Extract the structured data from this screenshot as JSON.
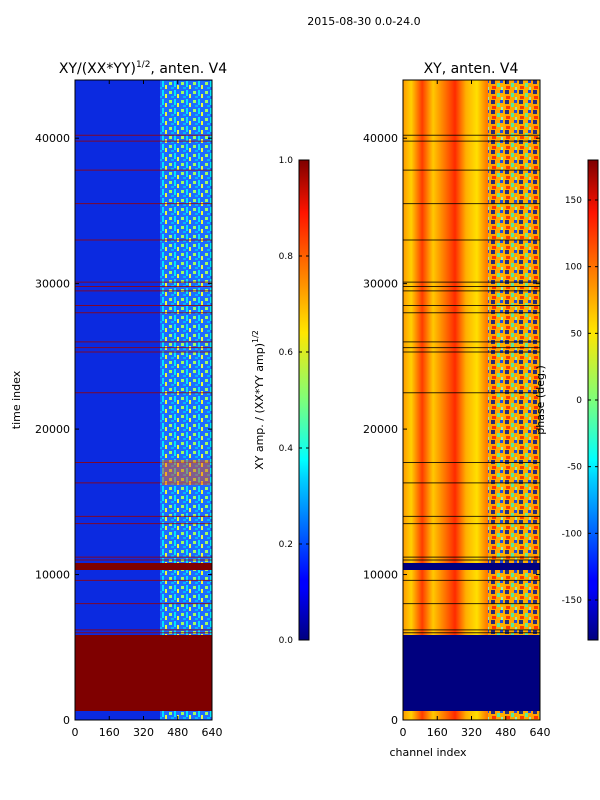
{
  "chart_data": {
    "type": "heatmap",
    "suptitle": "2015-08-30 0.0-24.0",
    "panels": [
      {
        "id": "amp",
        "title": "XY/(XX*YY)",
        "title_sup": "1/2",
        "title_suffix": ", anten. V4",
        "xlabel": "",
        "ylabel": "time index",
        "x_ticks": [
          "0",
          "160",
          "320",
          "480",
          "640"
        ],
        "xlim": [
          0,
          640
        ],
        "y_ticks": [
          "0",
          "10000",
          "20000",
          "30000",
          "40000"
        ],
        "ylim": [
          0,
          44000
        ],
        "colorbar": {
          "label": "XY amp. / (XX*YY amp)",
          "label_sup": "1/2",
          "ticks": [
            "0.0",
            "0.2",
            "0.4",
            "0.6",
            "0.8",
            "1.0"
          ],
          "range": [
            0,
            1
          ],
          "colormap": "jet"
        }
      },
      {
        "id": "phase",
        "title": "XY, anten. V4",
        "xlabel": "channel index",
        "ylabel": "",
        "x_ticks": [
          "0",
          "160",
          "320",
          "480",
          "640"
        ],
        "xlim": [
          0,
          640
        ],
        "y_ticks": [
          "0",
          "10000",
          "20000",
          "30000",
          "40000"
        ],
        "ylim": [
          0,
          44000
        ],
        "colorbar": {
          "label": "phase (deg.)",
          "ticks": [
            "-150",
            "-100",
            "-50",
            "0",
            "50",
            "100",
            "150"
          ],
          "range": [
            -180,
            180
          ],
          "colormap": "jet"
        }
      }
    ],
    "features": {
      "saturated_time_block": [
        600,
        5800
      ],
      "high_amp_band": [
        10400,
        10900
      ],
      "rfi_channel_range": [
        400,
        640
      ]
    }
  }
}
